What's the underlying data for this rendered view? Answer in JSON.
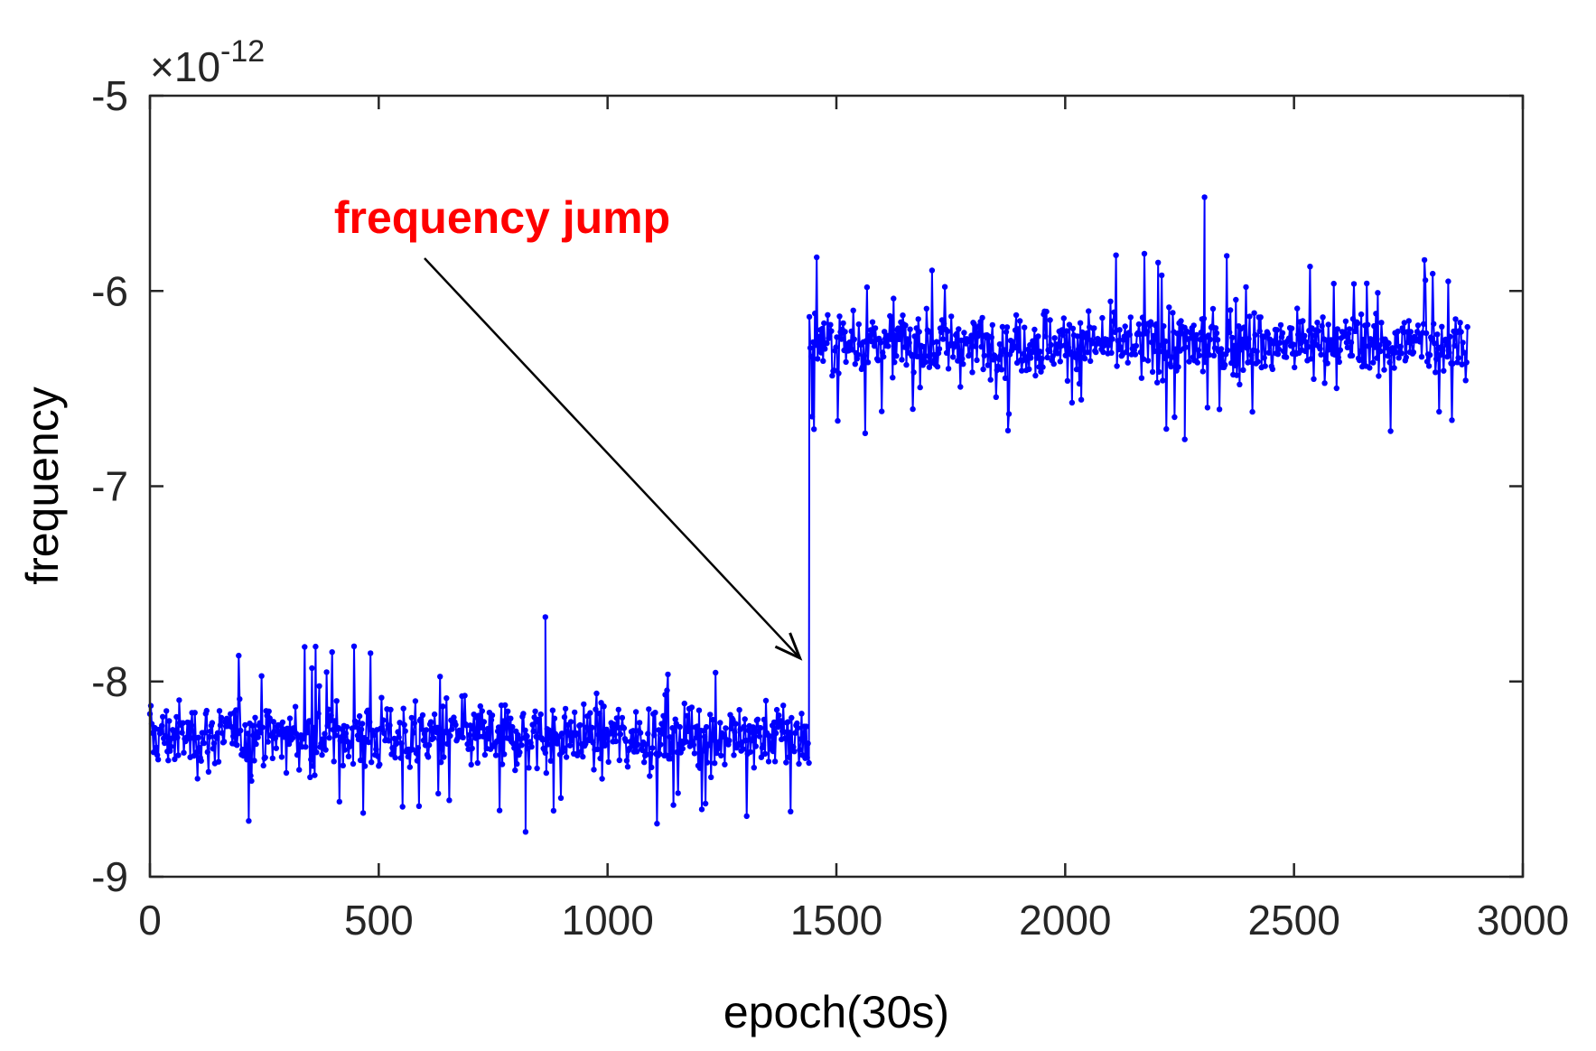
{
  "chart_data": {
    "type": "line",
    "title": "",
    "xlabel": "epoch(30s)",
    "ylabel": "frequency",
    "xlim": [
      0,
      3000
    ],
    "ylim": [
      -9,
      -5
    ],
    "x_ticks": [
      0,
      500,
      1000,
      1500,
      2000,
      2500,
      3000
    ],
    "y_ticks": [
      -9,
      -8,
      -7,
      -6,
      -5
    ],
    "y_exponent_label": "×10",
    "y_exponent_power": "-12",
    "grid": false,
    "series": [
      {
        "name": "frequency",
        "color": "#0000ff",
        "marker": "dot",
        "segments": [
          {
            "x_start": 0,
            "x_end": 1440,
            "mean": -8.28,
            "noise_amplitude": 0.22,
            "min": -8.77,
            "max": -7.67
          },
          {
            "x_start": 1441,
            "x_end": 2880,
            "mean": -6.27,
            "noise_amplitude": 0.22,
            "min": -6.76,
            "max": -5.52
          }
        ],
        "jump_x": 1440
      }
    ],
    "annotations": [
      {
        "text": "frequency jump",
        "color": "#ff0000",
        "points_to": {
          "x": 1440,
          "y": -7.88
        }
      }
    ]
  }
}
